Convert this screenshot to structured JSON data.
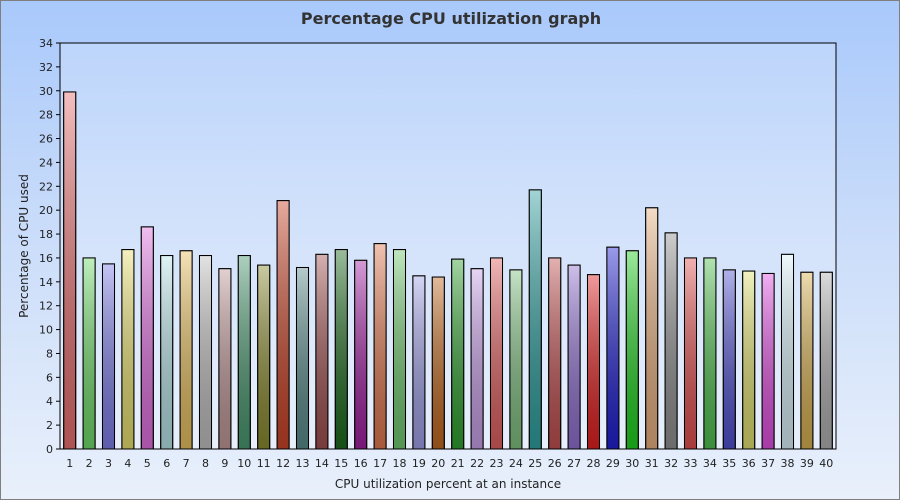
{
  "chart_data": {
    "type": "bar",
    "title": "Percentage CPU utilization graph",
    "xlabel": "CPU utilization percent at an instance",
    "ylabel": "Percentage of CPU used",
    "ylim": [
      0,
      34
    ],
    "ytick_step": 2,
    "grid": false,
    "legend": "none",
    "categories": [
      "1",
      "2",
      "3",
      "4",
      "5",
      "6",
      "7",
      "8",
      "9",
      "10",
      "11",
      "12",
      "13",
      "14",
      "15",
      "16",
      "17",
      "18",
      "19",
      "20",
      "21",
      "22",
      "23",
      "24",
      "25",
      "26",
      "27",
      "28",
      "29",
      "30",
      "31",
      "32",
      "33",
      "34",
      "35",
      "36",
      "37",
      "38",
      "39",
      "40"
    ],
    "values": [
      29.9,
      16.0,
      15.5,
      16.7,
      18.6,
      16.2,
      16.6,
      16.2,
      15.1,
      16.2,
      15.4,
      20.8,
      15.2,
      16.3,
      16.7,
      15.8,
      17.2,
      16.7,
      14.5,
      14.4,
      15.9,
      15.1,
      16.0,
      15.0,
      21.7,
      16.0,
      15.4,
      14.6,
      16.9,
      16.6,
      20.2,
      18.1,
      16.0,
      16.0,
      15.0,
      14.9,
      14.7,
      16.3,
      14.8,
      14.8
    ],
    "colors": [
      "#e87070",
      "#70dc6a",
      "#7d7de8",
      "#e8e070",
      "#e070e0",
      "#b8e4e8",
      "#e8c060",
      "#c0c0c0",
      "#c09898",
      "#4a9870",
      "#8a8a30",
      "#c84428",
      "#5a8a8a",
      "#a05050",
      "#1e6a1e",
      "#a020a0",
      "#e07850",
      "#70c870",
      "#a0a0e8",
      "#c06820",
      "#30a030",
      "#c8a0e8",
      "#e06060",
      "#80c080",
      "#30a0a0",
      "#c05050",
      "#9070d0",
      "#e02020",
      "#2020d0",
      "#20d020",
      "#e8b080",
      "#909090",
      "#e05050",
      "#50c050",
      "#5050d0",
      "#e0e070",
      "#e050e0",
      "#d8f0f8",
      "#d8b050",
      "#b0b0b0"
    ]
  }
}
